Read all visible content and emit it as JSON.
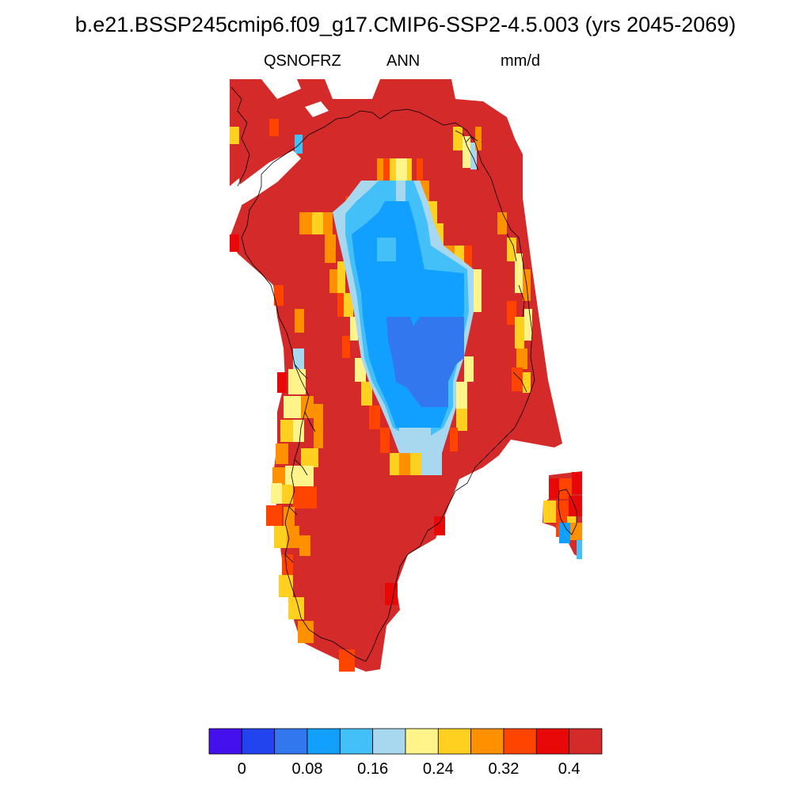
{
  "title": "b.e21.BSSP245cmip6.f09_g17.CMIP6-SSP2-4.5.003 (yrs 2045-2069)",
  "subtitle_left": "QSNOFRZ",
  "subtitle_center": "ANN",
  "subtitle_right": "mm/d",
  "colorbar": {
    "colors": [
      "#4410ee",
      "#2244ee",
      "#3377ee",
      "#11a0ff",
      "#44c0f8",
      "#a8d8f0",
      "#fff48a",
      "#ffd020",
      "#ff9000",
      "#ff4400",
      "#e80808",
      "#d42a2a"
    ],
    "labels": [
      "0",
      "0.08",
      "0.16",
      "0.24",
      "0.32",
      "0.4"
    ]
  },
  "map_colors": {
    "dark_red": "#d42a2a",
    "red": "#e80808",
    "orange_red": "#ff4400",
    "orange": "#ff9000",
    "gold": "#ffd020",
    "yellow": "#fff48a",
    "pale_blue": "#a8d8f0",
    "light_blue": "#44c0f8",
    "blue": "#11a0ff",
    "medium_blue": "#3377ee"
  }
}
